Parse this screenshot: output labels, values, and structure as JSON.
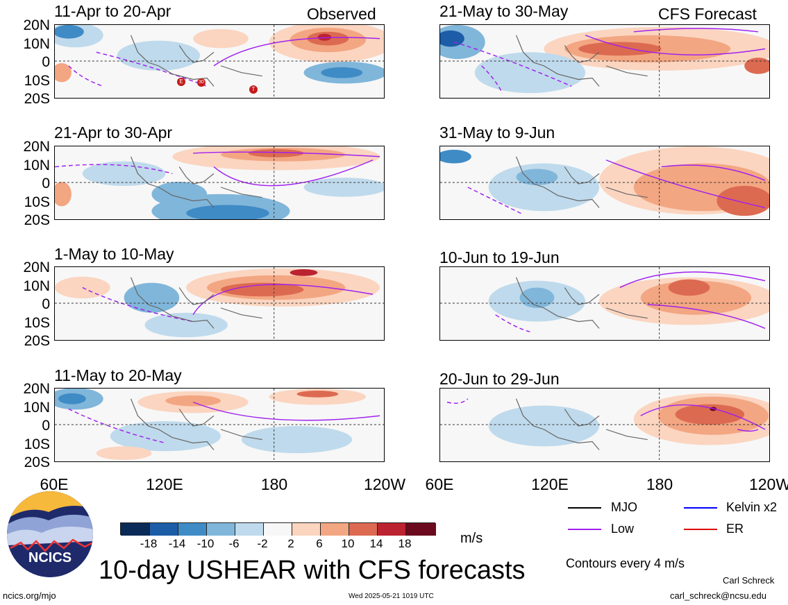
{
  "header": {
    "left_column_label": "Observed",
    "right_column_label": "CFS Forecast"
  },
  "panels_left": [
    {
      "title": "11-Apr to 20-Apr",
      "storm_markers": [
        "E",
        "30",
        "T"
      ]
    },
    {
      "title": "21-Apr to 30-Apr"
    },
    {
      "title": "1-May to 10-May"
    },
    {
      "title": "11-May to 20-May"
    }
  ],
  "panels_right": [
    {
      "title": "21-May to 30-May"
    },
    {
      "title": "31-May to 9-Jun"
    },
    {
      "title": "10-Jun to 19-Jun"
    },
    {
      "title": "20-Jun to 29-Jun"
    }
  ],
  "lat_labels": [
    "20N",
    "10N",
    "0",
    "10S",
    "20S"
  ],
  "lon_labels": [
    "60E",
    "120E",
    "180",
    "120W"
  ],
  "colorbar": {
    "ticks": [
      "-18",
      "-14",
      "-10",
      "-6",
      "-2",
      "2",
      "6",
      "10",
      "14",
      "18"
    ],
    "unit": "m/s",
    "colors": [
      "#0a2a57",
      "#1d5da8",
      "#3f8bc6",
      "#80b6da",
      "#bfdaec",
      "#f7f7f7",
      "#fbd5c0",
      "#f3a682",
      "#dc6a51",
      "#bb2330",
      "#6b0a1f"
    ]
  },
  "legend": {
    "items": [
      {
        "label": "MJO",
        "color": "#000000"
      },
      {
        "label": "Kelvin x2",
        "color": "#0000ff"
      },
      {
        "label": "Low",
        "color": "#a020f0"
      },
      {
        "label": "ER",
        "color": "#dd0000"
      }
    ],
    "contours_note": "Contours every 4 m/s"
  },
  "logo": {
    "text": "NCICS"
  },
  "main_title": "10-day USHEAR with CFS forecasts",
  "footer": {
    "url": "ncics.org/mjo",
    "timestamp": "Wed 2025-05-21 1019 UTC",
    "author": "Carl Schreck",
    "email": "carl_schreck@ncsu.edu"
  }
}
